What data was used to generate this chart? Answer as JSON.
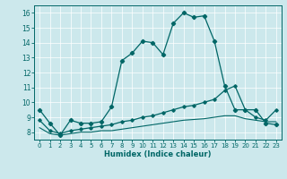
{
  "xlabel": "Humidex (Indice chaleur)",
  "ylabel": "",
  "bg_color": "#cce8ec",
  "line_color": "#006666",
  "grid_color": "#ffffff",
  "x_ticks": [
    0,
    1,
    2,
    3,
    4,
    5,
    6,
    7,
    8,
    9,
    10,
    11,
    12,
    13,
    14,
    15,
    16,
    17,
    18,
    19,
    20,
    21,
    22,
    23
  ],
  "y_ticks": [
    8,
    9,
    10,
    11,
    12,
    13,
    14,
    15,
    16
  ],
  "xlim": [
    -0.5,
    23.5
  ],
  "ylim": [
    7.5,
    16.5
  ],
  "curve1_x": [
    0,
    1,
    2,
    3,
    4,
    5,
    6,
    7,
    8,
    9,
    10,
    11,
    12,
    13,
    14,
    15,
    16,
    17,
    18,
    19,
    20,
    21,
    22,
    23
  ],
  "curve1_y": [
    9.5,
    8.6,
    7.8,
    8.8,
    8.6,
    8.6,
    8.7,
    9.7,
    12.8,
    13.3,
    14.1,
    14.0,
    13.2,
    15.3,
    16.0,
    15.7,
    15.8,
    14.1,
    11.1,
    9.5,
    9.5,
    9.5,
    8.6,
    8.5
  ],
  "curve2_x": [
    0,
    1,
    2,
    3,
    4,
    5,
    6,
    7,
    8,
    9,
    10,
    11,
    12,
    13,
    14,
    15,
    16,
    17,
    18,
    19,
    20,
    21,
    22,
    23
  ],
  "curve2_y": [
    8.8,
    8.1,
    7.9,
    8.1,
    8.2,
    8.3,
    8.4,
    8.5,
    8.7,
    8.8,
    9.0,
    9.1,
    9.3,
    9.5,
    9.7,
    9.8,
    10.0,
    10.2,
    10.8,
    11.1,
    9.5,
    9.0,
    8.8,
    9.5
  ],
  "curve3_x": [
    0,
    1,
    2,
    3,
    4,
    5,
    6,
    7,
    8,
    9,
    10,
    11,
    12,
    13,
    14,
    15,
    16,
    17,
    18,
    19,
    20,
    21,
    22,
    23
  ],
  "curve3_y": [
    8.3,
    7.9,
    7.8,
    7.9,
    8.0,
    8.0,
    8.1,
    8.1,
    8.2,
    8.3,
    8.4,
    8.5,
    8.6,
    8.7,
    8.8,
    8.85,
    8.9,
    9.0,
    9.1,
    9.1,
    8.9,
    8.8,
    8.7,
    8.7
  ]
}
